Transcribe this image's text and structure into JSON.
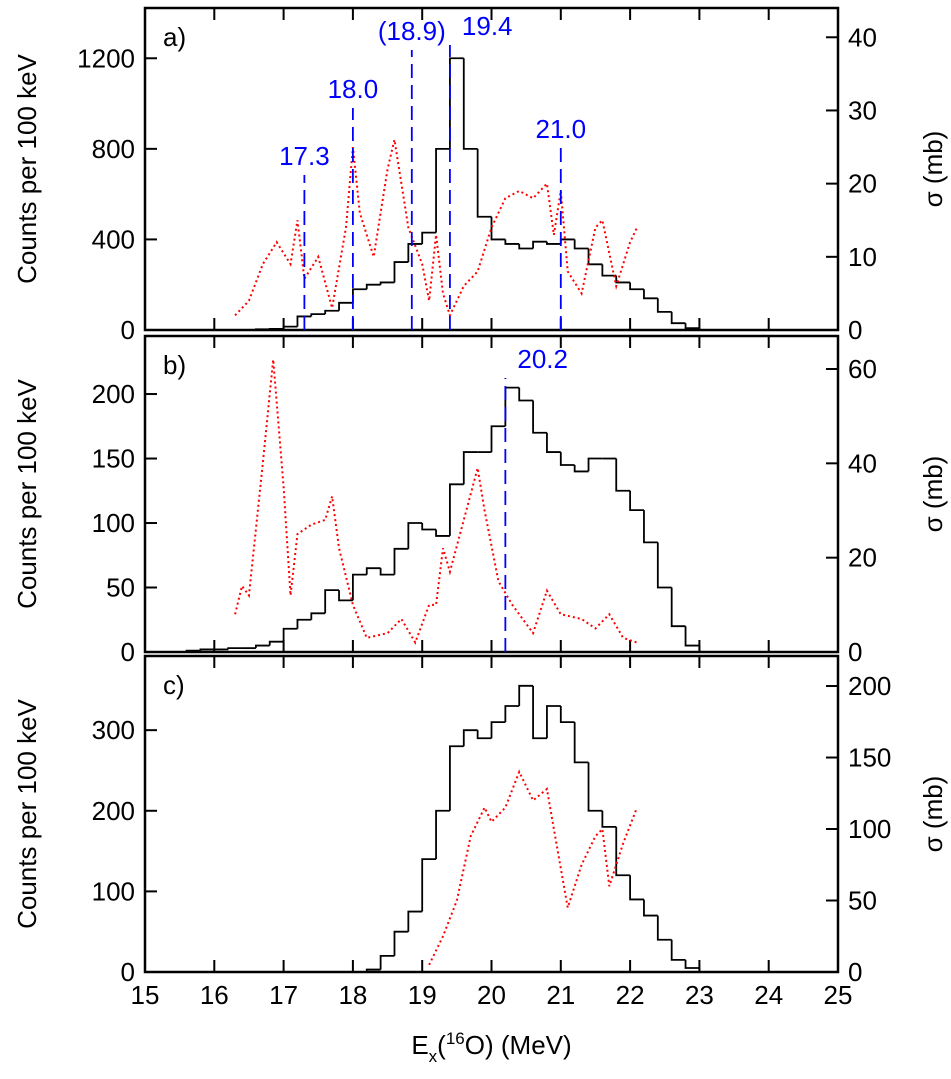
{
  "chart_data": [
    {
      "type": "histogram",
      "panel_label": "a)",
      "ylabel": "Counts per 100 keV",
      "y2label": "σ (mb)",
      "xlim": [
        15,
        25
      ],
      "ylim": [
        0,
        1422
      ],
      "yticks": [
        0,
        400,
        800,
        1200
      ],
      "y2lim": [
        0,
        44
      ],
      "y2ticks": [
        0,
        10,
        20,
        30,
        40
      ],
      "color": "#000000",
      "bins": [
        16.6,
        16.8,
        17.0,
        17.2,
        17.4,
        17.6,
        17.8,
        18.0,
        18.2,
        18.4,
        18.6,
        18.8,
        19.0,
        19.2,
        19.4,
        19.6,
        19.8,
        20.0,
        20.2,
        20.4,
        20.6,
        20.8,
        21.0,
        21.2,
        21.4,
        21.6,
        21.8,
        22.0,
        22.2,
        22.4,
        22.6,
        22.8,
        23.0
      ],
      "counts": [
        3,
        5,
        15,
        60,
        70,
        85,
        120,
        180,
        200,
        210,
        300,
        380,
        430,
        800,
        1200,
        800,
        500,
        400,
        380,
        360,
        390,
        380,
        400,
        360,
        290,
        240,
        210,
        180,
        140,
        80,
        30,
        8
      ],
      "series": [
        {
          "axis": "y2",
          "color": "#ff0000",
          "x": [
            16.3,
            16.5,
            16.7,
            16.9,
            17.1,
            17.2,
            17.3,
            17.5,
            17.7,
            17.9,
            18.0,
            18.1,
            18.3,
            18.5,
            18.6,
            18.8,
            19.0,
            19.1,
            19.2,
            19.3,
            19.4,
            19.6,
            19.8,
            20.0,
            20.2,
            20.4,
            20.6,
            20.8,
            20.9,
            21.0,
            21.1,
            21.3,
            21.5,
            21.6,
            21.8,
            22.0,
            22.1
          ],
          "values": [
            2,
            4,
            9,
            12,
            9,
            15,
            7,
            10,
            3,
            14,
            25,
            16,
            10,
            22,
            26,
            14,
            9,
            4,
            13,
            5,
            2,
            6,
            8,
            14,
            18,
            19,
            18,
            20,
            13,
            19,
            8,
            5,
            14,
            15,
            6,
            12,
            14
          ]
        }
      ],
      "markers": [
        {
          "value": 17.3,
          "label": "17.3"
        },
        {
          "value": 18.0,
          "label": "18.0"
        },
        {
          "value": 18.85,
          "label": "(18.9)"
        },
        {
          "value": 19.4,
          "label": "19.4"
        },
        {
          "value": 21.0,
          "label": "21.0"
        }
      ],
      "marker_color": "#0000ff"
    },
    {
      "type": "histogram",
      "panel_label": "b)",
      "ylabel": "Counts per 100 keV",
      "y2label": "σ (mb)",
      "xlim": [
        15,
        25
      ],
      "ylim": [
        0,
        245
      ],
      "yticks": [
        0,
        50,
        100,
        150,
        200
      ],
      "y2lim": [
        0,
        67
      ],
      "y2ticks": [
        0,
        20,
        40,
        60
      ],
      "color": "#000000",
      "bins": [
        15.6,
        15.8,
        16.0,
        16.2,
        16.4,
        16.6,
        16.8,
        17.0,
        17.2,
        17.4,
        17.6,
        17.8,
        18.0,
        18.2,
        18.4,
        18.6,
        18.8,
        19.0,
        19.2,
        19.4,
        19.6,
        19.8,
        20.0,
        20.2,
        20.4,
        20.6,
        20.8,
        21.0,
        21.2,
        21.4,
        21.6,
        21.8,
        22.0,
        22.2,
        22.4,
        22.6,
        22.8,
        23.0
      ],
      "counts": [
        1,
        2,
        2,
        3,
        3,
        5,
        8,
        18,
        25,
        30,
        48,
        40,
        60,
        65,
        60,
        80,
        100,
        95,
        90,
        130,
        155,
        155,
        175,
        205,
        195,
        170,
        155,
        145,
        140,
        150,
        150,
        125,
        110,
        85,
        50,
        20,
        5
      ],
      "series": [
        {
          "axis": "y2",
          "color": "#ff0000",
          "x": [
            16.3,
            16.4,
            16.5,
            16.7,
            16.85,
            17.0,
            17.1,
            17.2,
            17.4,
            17.6,
            17.7,
            17.8,
            18.0,
            18.2,
            18.5,
            18.7,
            18.9,
            19.1,
            19.2,
            19.3,
            19.4,
            19.6,
            19.8,
            19.9,
            20.1,
            20.3,
            20.6,
            20.8,
            21.0,
            21.3,
            21.5,
            21.7,
            21.9,
            22.1
          ],
          "values": [
            8,
            14,
            12,
            40,
            62,
            35,
            12,
            25,
            27,
            28,
            33,
            22,
            10,
            3,
            4,
            7,
            2,
            10,
            10,
            22,
            17,
            28,
            39,
            30,
            15,
            10,
            4,
            13,
            8,
            7,
            5,
            8,
            3,
            2
          ]
        }
      ],
      "markers": [
        {
          "value": 20.2,
          "label": "20.2"
        }
      ],
      "marker_color": "#0000ff"
    },
    {
      "type": "histogram",
      "panel_label": "c)",
      "ylabel": "Counts per 100 keV",
      "y2label": "σ (mb)",
      "xlabel_parts": [
        "E",
        "x",
        "(",
        "16",
        "O) (MeV)"
      ],
      "xlim": [
        15,
        25
      ],
      "xticks": [
        15,
        16,
        17,
        18,
        19,
        20,
        21,
        22,
        23,
        24,
        25
      ],
      "ylim": [
        0,
        392
      ],
      "yticks": [
        0,
        100,
        200,
        300
      ],
      "y2lim": [
        0,
        221
      ],
      "y2ticks": [
        0,
        50,
        100,
        150,
        200
      ],
      "color": "#000000",
      "bins": [
        18.2,
        18.4,
        18.6,
        18.8,
        19.0,
        19.2,
        19.4,
        19.6,
        19.8,
        20.0,
        20.2,
        20.4,
        20.6,
        20.8,
        21.0,
        21.2,
        21.4,
        21.6,
        21.8,
        22.0,
        22.2,
        22.4,
        22.6,
        22.8,
        23.0
      ],
      "counts": [
        3,
        20,
        50,
        75,
        140,
        200,
        280,
        300,
        290,
        310,
        330,
        355,
        290,
        330,
        310,
        260,
        200,
        180,
        120,
        90,
        70,
        40,
        15,
        5
      ],
      "series": [
        {
          "axis": "y2",
          "color": "#ff0000",
          "x": [
            19.1,
            19.3,
            19.5,
            19.7,
            19.9,
            20.0,
            20.2,
            20.4,
            20.6,
            20.8,
            20.9,
            21.1,
            21.3,
            21.5,
            21.6,
            21.7,
            21.9,
            22.1
          ],
          "values": [
            5,
            25,
            50,
            95,
            115,
            105,
            115,
            140,
            120,
            128,
            100,
            45,
            75,
            95,
            100,
            60,
            90,
            115
          ]
        }
      ]
    }
  ]
}
